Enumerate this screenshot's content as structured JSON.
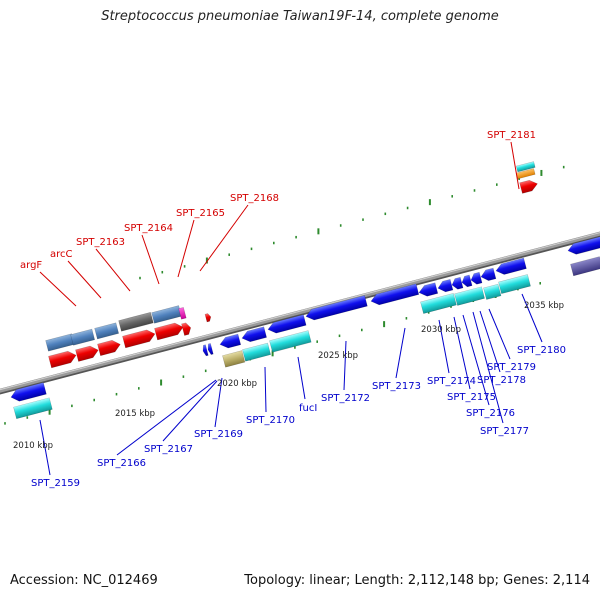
{
  "header": {
    "title": "Streptococcus pneumoniae Taiwan19F-14, complete genome"
  },
  "footer": {
    "accession": "Accession: NC_012469",
    "stats": "Topology: linear; Length: 2,112,148 bp; Genes: 2,114"
  },
  "colors": {
    "forward_label": "#d40000",
    "reverse_label": "#0000cc",
    "tick": "#2e8b2e",
    "backbone": "#888888"
  },
  "scale_labels": [
    "2010 kbp",
    "2015 kbp",
    "2020 kbp",
    "2025 kbp",
    "2030 kbp",
    "2035 kbp"
  ],
  "gene_labels": {
    "forward": [
      "argF",
      "arcC",
      "SPT_2163",
      "SPT_2164",
      "SPT_2165",
      "SPT_2168",
      "SPT_2181"
    ],
    "reverse": [
      "SPT_2159",
      "SPT_2166",
      "SPT_2167",
      "SPT_2169",
      "SPT_2170",
      "fucI",
      "SPT_2172",
      "SPT_2173",
      "SPT_2174",
      "SPT_2175",
      "SPT_2176",
      "SPT_2177",
      "SPT_2178",
      "SPT_2179",
      "SPT_2180"
    ]
  }
}
